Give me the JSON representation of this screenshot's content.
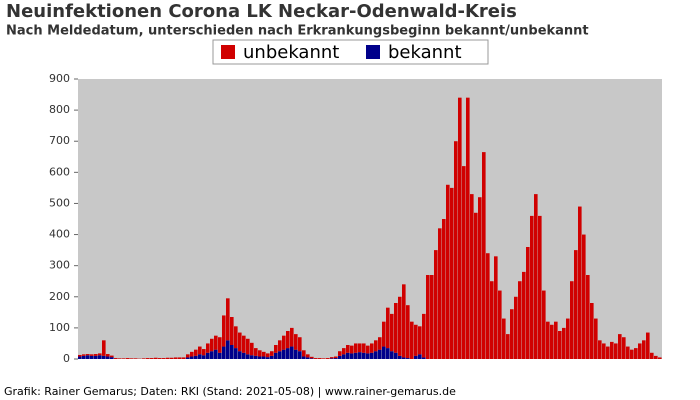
{
  "chart_data": {
    "type": "stacked-bar",
    "title": "Neuinfektionen Corona LK Neckar-Odenwald-Kreis",
    "subtitle": "Nach Meldedatum, unterschieden nach Erkrankungsbeginn bekannt/unbekannt",
    "footer": "Grafik: Rainer Gemarus; Daten: RKI (Stand: 2021-05-08) | www.rainer-gemarus.de",
    "ylim": [
      0,
      900
    ],
    "yticks": [
      0,
      100,
      200,
      300,
      400,
      500,
      600,
      700,
      800,
      900
    ],
    "series": [
      {
        "name": "bekannt",
        "color": "#00008b",
        "values": [
          8,
          10,
          12,
          10,
          10,
          12,
          10,
          8,
          6,
          0,
          0,
          0,
          0,
          0,
          0,
          0,
          0,
          0,
          0,
          0,
          0,
          0,
          0,
          0,
          0,
          0,
          0,
          5,
          8,
          10,
          15,
          12,
          20,
          25,
          30,
          20,
          40,
          60,
          45,
          35,
          25,
          20,
          15,
          12,
          10,
          8,
          8,
          6,
          10,
          20,
          25,
          30,
          35,
          40,
          30,
          25,
          8,
          5,
          2,
          0,
          0,
          0,
          0,
          2,
          3,
          10,
          15,
          20,
          18,
          20,
          22,
          20,
          18,
          20,
          25,
          30,
          40,
          35,
          25,
          20,
          10,
          5,
          3,
          0,
          10,
          15,
          5,
          0,
          0,
          0,
          0,
          0,
          0,
          0,
          0,
          0,
          0,
          0,
          0,
          0,
          0,
          0,
          0,
          0,
          0,
          0,
          0,
          0,
          0,
          0,
          0,
          0,
          0,
          0,
          0,
          0,
          0,
          0,
          0,
          0,
          0,
          0,
          0,
          0,
          0,
          0,
          0,
          0,
          0,
          0,
          0,
          0,
          0,
          0,
          0,
          0,
          0,
          0,
          0,
          0,
          0,
          0,
          0,
          0,
          0,
          0
        ]
      },
      {
        "name": "unbekannt",
        "color": "#d00000",
        "values": [
          5,
          5,
          4,
          5,
          6,
          6,
          50,
          8,
          5,
          3,
          2,
          2,
          3,
          2,
          2,
          1,
          2,
          3,
          3,
          4,
          3,
          3,
          4,
          4,
          5,
          5,
          5,
          10,
          15,
          20,
          25,
          20,
          30,
          40,
          45,
          50,
          100,
          135,
          90,
          70,
          60,
          55,
          50,
          40,
          25,
          20,
          15,
          12,
          15,
          25,
          35,
          45,
          55,
          60,
          50,
          45,
          20,
          10,
          5,
          3,
          3,
          2,
          3,
          4,
          5,
          15,
          20,
          25,
          25,
          30,
          28,
          30,
          25,
          30,
          35,
          40,
          80,
          130,
          120,
          160,
          190,
          235,
          170,
          120,
          100,
          90,
          140,
          270,
          270,
          350,
          420,
          450,
          560,
          550,
          700,
          840,
          620,
          840,
          530,
          470,
          520,
          665,
          340,
          250,
          330,
          220,
          130,
          80,
          160,
          200,
          250,
          280,
          360,
          460,
          530,
          460,
          220,
          120,
          110,
          120,
          90,
          100,
          130,
          250,
          350,
          490,
          400,
          270,
          180,
          130,
          60,
          50,
          40,
          55,
          50,
          80,
          70,
          40,
          30,
          35,
          50,
          60,
          85,
          20,
          10,
          5
        ]
      }
    ],
    "legend": "top-center",
    "background": "#c8c8c8"
  }
}
